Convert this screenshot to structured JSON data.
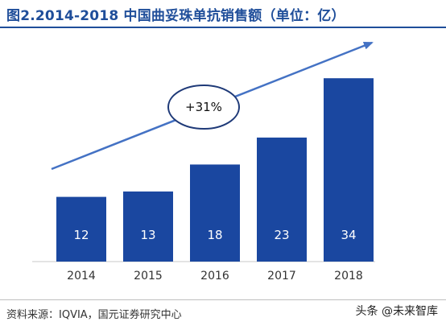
{
  "header": {
    "title": "图2.2014-2018 中国曲妥珠单抗销售额（单位：亿）"
  },
  "chart_data": {
    "type": "bar",
    "categories": [
      "2014",
      "2015",
      "2016",
      "2017",
      "2018"
    ],
    "values": [
      12,
      13,
      18,
      23,
      34
    ],
    "ylim": [
      0,
      40
    ],
    "grid": false,
    "annotation": "+31%",
    "bar_color": "#1a47a0",
    "arrow_color": "#4472c4"
  },
  "footer": {
    "source": "资料来源：IQVIA，国元证券研究中心",
    "watermark": "头条 @未来智库"
  }
}
